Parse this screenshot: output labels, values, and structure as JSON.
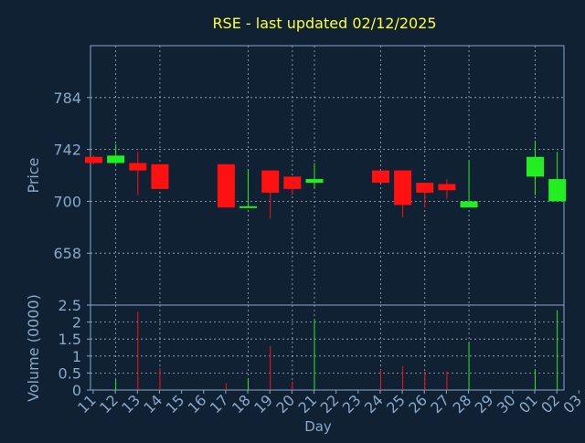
{
  "page": {
    "background": "#0f2133"
  },
  "chart_data": {
    "type": "candlestick",
    "title": "RSE - last updated 02/12/2025",
    "title_color": "#ffff33",
    "axis_color": "#8aa8c8",
    "grid": true,
    "up_color": "#22ee22",
    "down_color": "#ff1111",
    "xlabel": "Day",
    "price_panel": {
      "ylabel": "Price",
      "ylim": [
        616,
        826
      ],
      "yticks": [
        658,
        700,
        742,
        784
      ]
    },
    "volume_panel": {
      "ylabel": "Volume (0000)",
      "ylim": [
        0,
        2.5
      ],
      "yticks": [
        "0",
        "0.5",
        "1",
        "1.5",
        "2",
        "2.5"
      ]
    },
    "x_ticks": [
      "11",
      "12",
      "13",
      "14",
      "15",
      "16",
      "17",
      "18",
      "19",
      "20",
      "21",
      "22",
      "23",
      "24",
      "25",
      "26",
      "27",
      "28",
      "29",
      "30",
      "01",
      "02",
      "03"
    ],
    "candles": [
      {
        "x": 0,
        "open": 736,
        "close": 731,
        "high": 737,
        "low": 730,
        "volume": 0.0
      },
      {
        "x": 1,
        "open": 731,
        "close": 737,
        "high": 746,
        "low": 730,
        "volume": 0.3
      },
      {
        "x": 2,
        "open": 731,
        "close": 725,
        "high": 740,
        "low": 705,
        "volume": 2.3
      },
      {
        "x": 3,
        "open": 730,
        "close": 710,
        "high": 730,
        "low": 710,
        "volume": 0.65
      },
      {
        "x": 6,
        "open": 730,
        "close": 695,
        "high": 730,
        "low": 695,
        "volume": 0.2
      },
      {
        "x": 7,
        "open": 695,
        "close": 696,
        "high": 726,
        "low": 695,
        "volume": 0.35
      },
      {
        "x": 8,
        "open": 725,
        "close": 707,
        "high": 725,
        "low": 686,
        "volume": 1.3
      },
      {
        "x": 9,
        "open": 720,
        "close": 710,
        "high": 720,
        "low": 705,
        "volume": 0.25
      },
      {
        "x": 10,
        "open": 715,
        "close": 718,
        "high": 731,
        "low": 710,
        "volume": 2.05
      },
      {
        "x": 13,
        "open": 725,
        "close": 715,
        "high": 725,
        "low": 715,
        "volume": 0.6
      },
      {
        "x": 14,
        "open": 725,
        "close": 697,
        "high": 725,
        "low": 687,
        "volume": 0.7
      },
      {
        "x": 15,
        "open": 715,
        "close": 707,
        "high": 715,
        "low": 695,
        "volume": 0.55
      },
      {
        "x": 16,
        "open": 714,
        "close": 709,
        "high": 718,
        "low": 702,
        "volume": 0.55
      },
      {
        "x": 17,
        "open": 695,
        "close": 700,
        "high": 733,
        "low": 695,
        "volume": 1.4
      },
      {
        "x": 20,
        "open": 720,
        "close": 736,
        "high": 749,
        "low": 705,
        "volume": 0.6
      },
      {
        "x": 21,
        "open": 700,
        "close": 718,
        "high": 740,
        "low": 700,
        "volume": 2.35
      }
    ]
  }
}
